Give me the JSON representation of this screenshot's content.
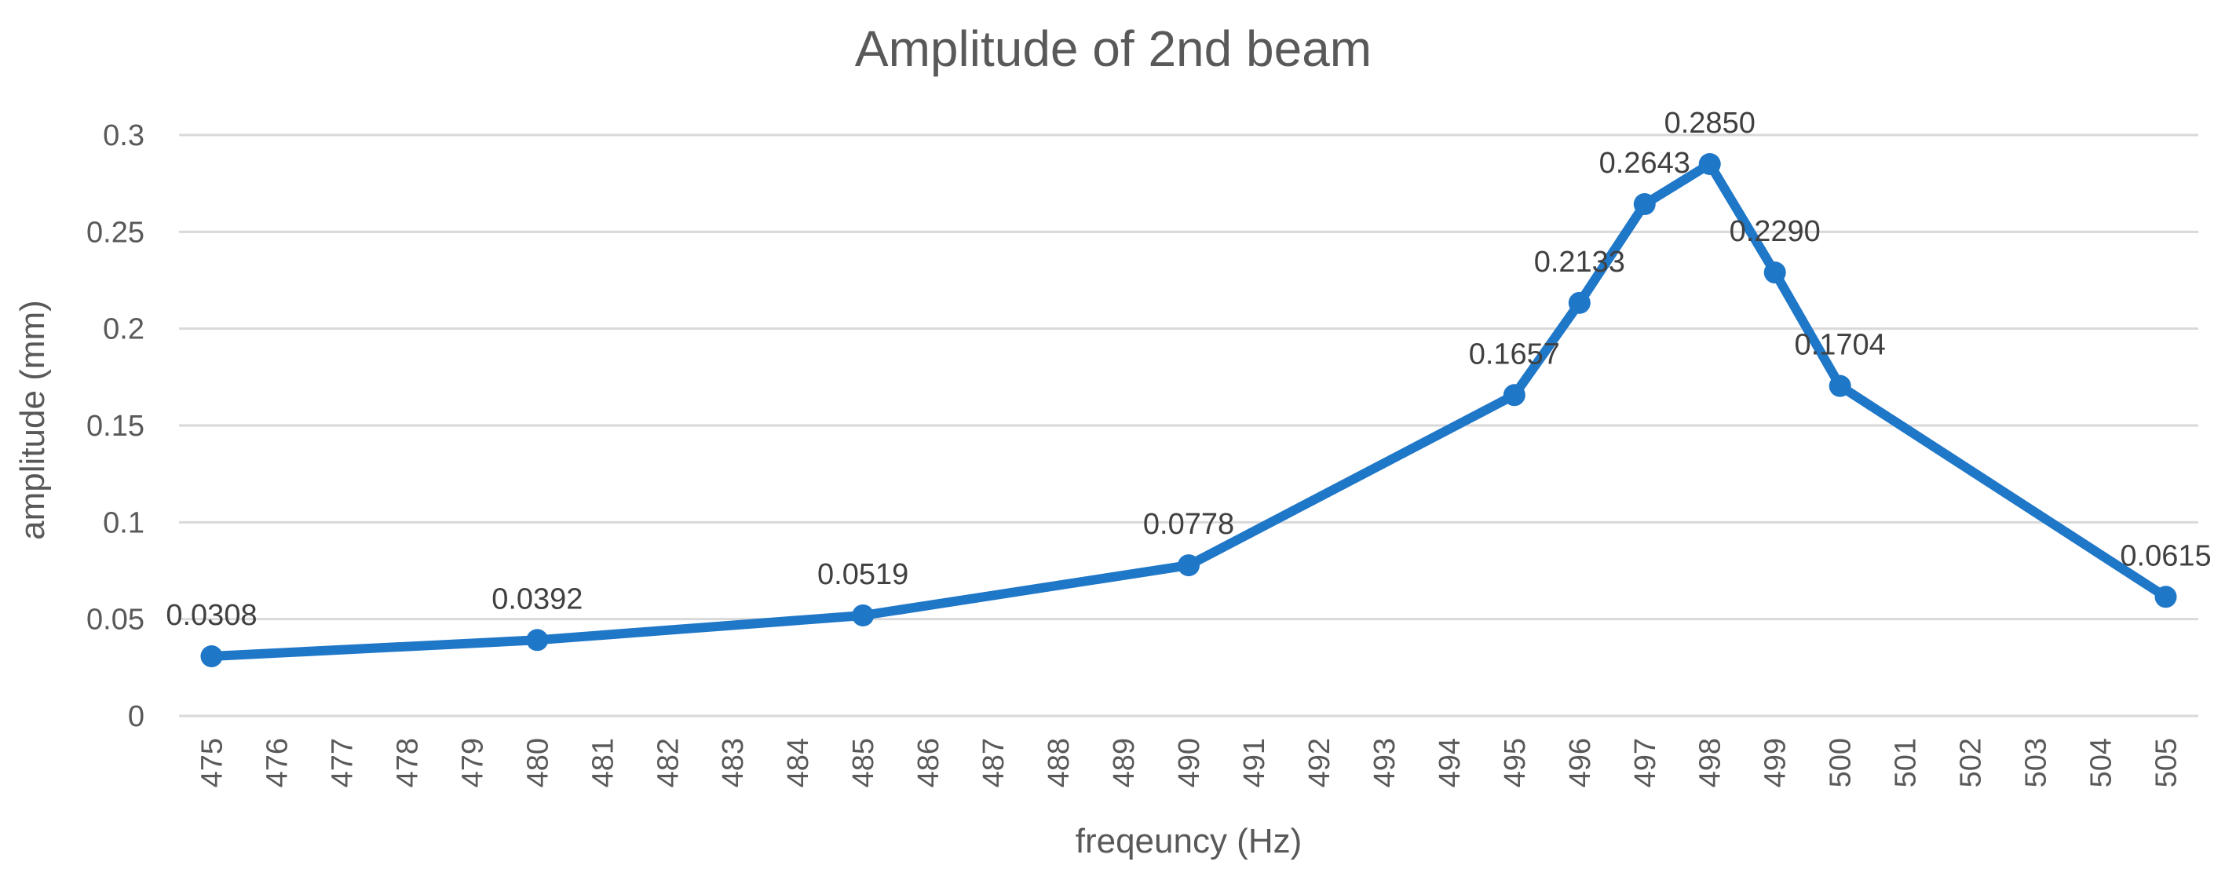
{
  "chart_data": {
    "type": "line",
    "title": "Amplitude of 2nd beam",
    "xlabel": "freqeuncy (Hz)",
    "ylabel": "amplitude (mm)",
    "categories": [
      "475",
      "476",
      "477",
      "478",
      "479",
      "480",
      "481",
      "482",
      "483",
      "484",
      "485",
      "486",
      "487",
      "488",
      "489",
      "490",
      "491",
      "492",
      "493",
      "494",
      "495",
      "496",
      "497",
      "498",
      "499",
      "500",
      "501",
      "502",
      "503",
      "504",
      "505"
    ],
    "ylim": [
      0,
      0.3
    ],
    "y_ticks": [
      {
        "value": 0,
        "label": "0"
      },
      {
        "value": 0.05,
        "label": "0.05"
      },
      {
        "value": 0.1,
        "label": "0.1"
      },
      {
        "value": 0.15,
        "label": "0.15"
      },
      {
        "value": 0.2,
        "label": "0.2"
      },
      {
        "value": 0.25,
        "label": "0.25"
      },
      {
        "value": 0.3,
        "label": "0.3"
      }
    ],
    "grid": true,
    "legend": "none",
    "series": [
      {
        "name": "amplitude",
        "color": "#1F77C8",
        "points": [
          {
            "x": 475,
            "y": 0.0308,
            "label": "0.0308"
          },
          {
            "x": 480,
            "y": 0.0392,
            "label": "0.0392"
          },
          {
            "x": 485,
            "y": 0.0519,
            "label": "0.0519"
          },
          {
            "x": 490,
            "y": 0.0778,
            "label": "0.0778"
          },
          {
            "x": 495,
            "y": 0.1657,
            "label": "0.1657"
          },
          {
            "x": 496,
            "y": 0.2133,
            "label": "0.2133"
          },
          {
            "x": 497,
            "y": 0.2643,
            "label": "0.2643"
          },
          {
            "x": 498,
            "y": 0.285,
            "label": "0.2850"
          },
          {
            "x": 499,
            "y": 0.229,
            "label": "0.2290"
          },
          {
            "x": 500,
            "y": 0.1704,
            "label": "0.1704"
          },
          {
            "x": 505,
            "y": 0.0615,
            "label": "0.0615"
          }
        ]
      }
    ],
    "colors": {
      "grid": "#D9D9D9",
      "text": "#595959",
      "label": "#404040"
    }
  }
}
